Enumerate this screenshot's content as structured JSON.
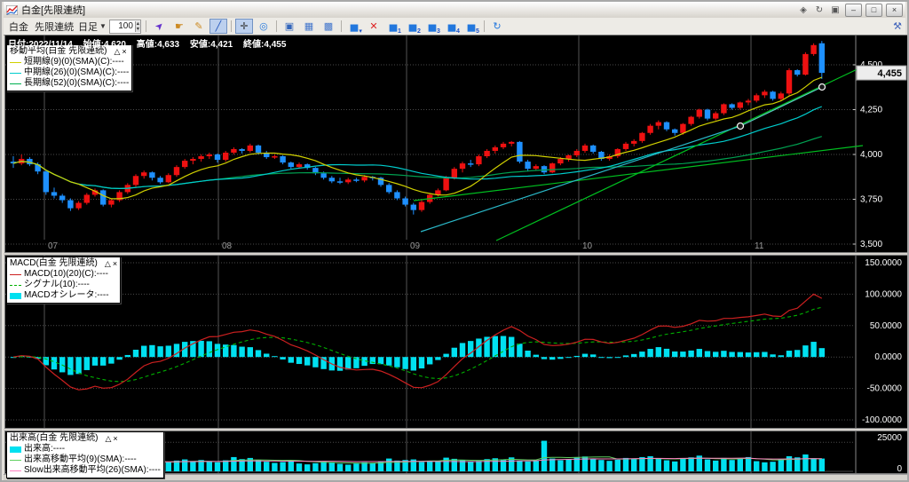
{
  "window": {
    "title": "白金[先限連続]",
    "mini_icons": [
      {
        "name": "pin-icon",
        "glyph": "◈"
      },
      {
        "name": "refresh-window-icon",
        "glyph": "↻"
      },
      {
        "name": "duplicate-window-icon",
        "glyph": "▣"
      }
    ],
    "controls": [
      {
        "name": "minimize-button",
        "glyph": "–"
      },
      {
        "name": "maximize-button",
        "glyph": "□"
      },
      {
        "name": "close-button",
        "glyph": "×"
      }
    ]
  },
  "toolbar": {
    "symbol": "白金",
    "series": "先限連続",
    "period": "日足",
    "period_caret": "▼",
    "bars_count": "100",
    "spin_up": "▴",
    "spin_down": "▾",
    "wrench_glyph": "⚒",
    "buttons": [
      {
        "name": "select-tool",
        "glyph": "➤",
        "color": "#6633cc",
        "rotate": -45
      },
      {
        "name": "hand-tool",
        "glyph": "☛",
        "color": "#cc8a22"
      },
      {
        "name": "pencil-tool",
        "glyph": "✎",
        "color": "#cc8a22"
      },
      {
        "name": "trendline-tool",
        "glyph": "╱",
        "color": "#2255bb",
        "selected": true
      },
      {
        "type": "sep"
      },
      {
        "name": "crosshair-tool",
        "glyph": "✛",
        "color": "#333333",
        "selected": true
      },
      {
        "name": "scroll-to-latest",
        "glyph": "◎",
        "color": "#2277dd"
      },
      {
        "type": "sep"
      },
      {
        "name": "new-chart-window",
        "glyph": "▣",
        "color": "#3366bb"
      },
      {
        "name": "grid-layout-2",
        "glyph": "▦",
        "color": "#4477cc"
      },
      {
        "name": "grid-layout-3",
        "glyph": "▩",
        "color": "#4477cc"
      },
      {
        "type": "sep"
      },
      {
        "name": "add-indicator",
        "glyph": "▅",
        "color": "#2277dd",
        "badge": "▾"
      },
      {
        "name": "delete-indicator",
        "glyph": "✕",
        "color": "#dd2222"
      },
      {
        "name": "chart-preset-1",
        "glyph": "▅",
        "color": "#2277dd",
        "badge": "1"
      },
      {
        "name": "chart-preset-2",
        "glyph": "▅",
        "color": "#2277dd",
        "badge": "2"
      },
      {
        "name": "chart-preset-3",
        "glyph": "▅",
        "color": "#2277dd",
        "badge": "3"
      },
      {
        "name": "chart-preset-4",
        "glyph": "▅",
        "color": "#2277dd",
        "badge": "4"
      },
      {
        "name": "chart-preset-5",
        "glyph": "▅",
        "color": "#2277dd",
        "badge": "5"
      },
      {
        "type": "sep"
      },
      {
        "name": "refresh-chart",
        "glyph": "↻",
        "color": "#2277dd"
      }
    ]
  },
  "info_bar": {
    "date": "日付:2022/11/14",
    "open": "始値:4,620",
    "high": "高値:4,633",
    "low": "安値:4,421",
    "close": "終値:4,455"
  },
  "main_chart": {
    "legend": {
      "title": "移動平均(白金 先限連続)",
      "collapse": "△",
      "close": "×",
      "items": [
        {
          "color": "#d0d000",
          "swatch": "line",
          "label": "短期線(9)(0)(SMA)(C):----"
        },
        {
          "color": "#00cccc",
          "swatch": "line",
          "label": "中期線(26)(0)(SMA)(C):----"
        },
        {
          "color": "#00b050",
          "swatch": "line",
          "label": "長期線(52)(0)(SMA)(C):----"
        }
      ]
    },
    "current_price": "4,455",
    "current_price_value": 4455,
    "y_axis": [
      {
        "value": 4500,
        "label": "4,500"
      },
      {
        "value": 4250,
        "label": "4,250"
      },
      {
        "value": 4000,
        "label": "4,000"
      },
      {
        "value": 3750,
        "label": "3,750"
      },
      {
        "value": 3500,
        "label": "3,500"
      }
    ],
    "months": [
      {
        "x": 44,
        "label": "07"
      },
      {
        "x": 240,
        "label": "08"
      },
      {
        "x": 452,
        "label": "09"
      },
      {
        "x": 646,
        "label": "10"
      },
      {
        "x": 840,
        "label": "11"
      }
    ],
    "sma_periods": {
      "short": 9,
      "mid": 26,
      "long": 52
    },
    "sma_colors": {
      "short": "#d0d000",
      "mid": "#00cccc",
      "long": "#00a050"
    },
    "candle_colors": {
      "up": "#ee1111",
      "down": "#1e90ff"
    },
    "trendlines": [
      {
        "color": "#00c020",
        "points": [
          [
            553,
            231
          ],
          [
            966,
            35
          ]
        ]
      },
      {
        "color": "#00c020",
        "points": [
          [
            460,
            186
          ],
          [
            966,
            124
          ]
        ]
      },
      {
        "color": "#2ab8c8",
        "points": [
          [
            468,
            221
          ],
          [
            828,
            102
          ]
        ]
      },
      {
        "color": "#58c8c0",
        "points": [
          [
            828,
            102
          ],
          [
            920,
            58
          ]
        ],
        "handles": true
      }
    ],
    "candles": [
      [
        3960,
        3990,
        3925,
        3950
      ],
      [
        3950,
        4000,
        3940,
        3975
      ],
      [
        3975,
        3985,
        3935,
        3945
      ],
      [
        3945,
        3955,
        3890,
        3905
      ],
      [
        3905,
        3910,
        3775,
        3790
      ],
      [
        3790,
        3815,
        3755,
        3770
      ],
      [
        3770,
        3780,
        3730,
        3745
      ],
      [
        3745,
        3755,
        3685,
        3700
      ],
      [
        3700,
        3740,
        3690,
        3730
      ],
      [
        3730,
        3785,
        3720,
        3775
      ],
      [
        3775,
        3810,
        3765,
        3800
      ],
      [
        3800,
        3805,
        3710,
        3720
      ],
      [
        3720,
        3755,
        3705,
        3745
      ],
      [
        3745,
        3800,
        3735,
        3790
      ],
      [
        3790,
        3840,
        3780,
        3830
      ],
      [
        3830,
        3890,
        3820,
        3880
      ],
      [
        3880,
        3910,
        3865,
        3900
      ],
      [
        3900,
        3905,
        3855,
        3870
      ],
      [
        3870,
        3880,
        3835,
        3845
      ],
      [
        3845,
        3895,
        3840,
        3885
      ],
      [
        3885,
        3940,
        3875,
        3930
      ],
      [
        3930,
        3975,
        3920,
        3965
      ],
      [
        3965,
        3985,
        3945,
        3975
      ],
      [
        3975,
        4000,
        3960,
        3990
      ],
      [
        3990,
        4010,
        3975,
        4000
      ],
      [
        4000,
        4005,
        3955,
        3970
      ],
      [
        3970,
        4020,
        3960,
        4010
      ],
      [
        4010,
        4040,
        4000,
        4030
      ],
      [
        4030,
        4035,
        4005,
        4020
      ],
      [
        4020,
        4060,
        4010,
        4050
      ],
      [
        4050,
        4055,
        4000,
        4010
      ],
      [
        4010,
        4020,
        3975,
        3985
      ],
      [
        3985,
        4000,
        3975,
        3990
      ],
      [
        3990,
        3995,
        3945,
        3955
      ],
      [
        3955,
        3960,
        3920,
        3930
      ],
      [
        3930,
        3955,
        3920,
        3945
      ],
      [
        3945,
        3950,
        3915,
        3925
      ],
      [
        3925,
        3930,
        3885,
        3895
      ],
      [
        3895,
        3905,
        3860,
        3870
      ],
      [
        3870,
        3880,
        3840,
        3850
      ],
      [
        3850,
        3870,
        3835,
        3845
      ],
      [
        3845,
        3870,
        3835,
        3860
      ],
      [
        3860,
        3870,
        3845,
        3855
      ],
      [
        3855,
        3885,
        3845,
        3875
      ],
      [
        3875,
        3880,
        3855,
        3870
      ],
      [
        3870,
        3875,
        3820,
        3830
      ],
      [
        3830,
        3840,
        3780,
        3790
      ],
      [
        3790,
        3800,
        3745,
        3755
      ],
      [
        3755,
        3765,
        3710,
        3720
      ],
      [
        3720,
        3730,
        3665,
        3690
      ],
      [
        3690,
        3745,
        3680,
        3735
      ],
      [
        3735,
        3785,
        3725,
        3775
      ],
      [
        3775,
        3810,
        3765,
        3800
      ],
      [
        3800,
        3880,
        3795,
        3870
      ],
      [
        3870,
        3930,
        3860,
        3920
      ],
      [
        3920,
        3960,
        3900,
        3950
      ],
      [
        3950,
        3970,
        3930,
        3945
      ],
      [
        3945,
        4000,
        3935,
        3990
      ],
      [
        3990,
        4030,
        3980,
        4020
      ],
      [
        4020,
        4050,
        4005,
        4040
      ],
      [
        4040,
        4070,
        4030,
        4060
      ],
      [
        4060,
        4075,
        4045,
        4070
      ],
      [
        4070,
        4075,
        3950,
        3960
      ],
      [
        3960,
        3970,
        3905,
        3920
      ],
      [
        3920,
        3945,
        3910,
        3935
      ],
      [
        3935,
        3940,
        3890,
        3900
      ],
      [
        3900,
        3955,
        3895,
        3950
      ],
      [
        3950,
        3985,
        3940,
        3975
      ],
      [
        3975,
        4000,
        3960,
        3995
      ],
      [
        3995,
        4030,
        3985,
        4020
      ],
      [
        4020,
        4060,
        4010,
        4050
      ],
      [
        4050,
        4055,
        4005,
        4015
      ],
      [
        4015,
        4020,
        3965,
        3975
      ],
      [
        3975,
        4000,
        3965,
        3990
      ],
      [
        3990,
        4035,
        3980,
        4030
      ],
      [
        4030,
        4070,
        4020,
        4060
      ],
      [
        4060,
        4085,
        4045,
        4075
      ],
      [
        4075,
        4125,
        4065,
        4120
      ],
      [
        4120,
        4170,
        4110,
        4160
      ],
      [
        4160,
        4190,
        4140,
        4180
      ],
      [
        4180,
        4185,
        4130,
        4140
      ],
      [
        4140,
        4145,
        4105,
        4120
      ],
      [
        4120,
        4175,
        4110,
        4170
      ],
      [
        4170,
        4215,
        4160,
        4210
      ],
      [
        4210,
        4255,
        4200,
        4250
      ],
      [
        4250,
        4255,
        4190,
        4200
      ],
      [
        4200,
        4240,
        4190,
        4230
      ],
      [
        4230,
        4285,
        4220,
        4280
      ],
      [
        4280,
        4285,
        4250,
        4260
      ],
      [
        4260,
        4295,
        4250,
        4290
      ],
      [
        4290,
        4310,
        4275,
        4300
      ],
      [
        4300,
        4340,
        4290,
        4330
      ],
      [
        4330,
        4360,
        4315,
        4350
      ],
      [
        4350,
        4355,
        4300,
        4310
      ],
      [
        4310,
        4350,
        4300,
        4340
      ],
      [
        4340,
        4480,
        4330,
        4470
      ],
      [
        4470,
        4475,
        4435,
        4445
      ],
      [
        4445,
        4570,
        4440,
        4560
      ],
      [
        4560,
        4620,
        4550,
        4610
      ],
      [
        4620,
        4633,
        4421,
        4455
      ]
    ]
  },
  "macd": {
    "legend": {
      "title": "MACD(白金 先限連続)",
      "collapse": "△",
      "close": "×",
      "items": [
        {
          "color": "#cc2020",
          "swatch": "line",
          "label": "MACD(10)(20)(C):----"
        },
        {
          "color": "#00b000",
          "swatch": "dashed",
          "label": "シグナル(10):----"
        },
        {
          "color": "#00e0f0",
          "swatch": "block",
          "label": "MACDオシレータ:----"
        }
      ]
    },
    "params": {
      "fast": 10,
      "slow": 20,
      "signal": 10
    },
    "colors": {
      "macd": "#cc2020",
      "signal": "#00b000",
      "osc": "#00e0f0"
    },
    "y_axis": [
      {
        "value": 150,
        "label": "150.0000"
      },
      {
        "value": 100,
        "label": "100.0000"
      },
      {
        "value": 50,
        "label": "50.0000"
      },
      {
        "value": 0,
        "label": "0.0000"
      },
      {
        "value": -50,
        "label": "-50.0000"
      },
      {
        "value": -100,
        "label": "-100.0000"
      }
    ]
  },
  "volume": {
    "legend": {
      "title": "出来高(白金 先限連続)",
      "collapse": "△",
      "close": "×",
      "items": [
        {
          "color": "#00e0f0",
          "swatch": "block",
          "label": "出来高:----"
        },
        {
          "color": "#60d060",
          "swatch": "line",
          "label": "出来高移動平均(9)(SMA):----"
        },
        {
          "color": "#ff80c0",
          "swatch": "line",
          "label": "Slow出来高移動平均(26)(SMA):----"
        }
      ]
    },
    "colors": {
      "bar": "#00e0f0",
      "ma9": "#60d060",
      "ma26": "#ff80c0"
    },
    "y_axis": [
      {
        "value": 25000,
        "label": "25000"
      },
      {
        "value": 0,
        "label": "0"
      }
    ],
    "values": [
      6200,
      5800,
      5400,
      6800,
      9200,
      7400,
      6600,
      7800,
      6400,
      5900,
      6800,
      7600,
      5200,
      5800,
      6400,
      8600,
      7200,
      5600,
      5400,
      6200,
      7400,
      8200,
      6800,
      7800,
      7000,
      6200,
      7600,
      9800,
      8400,
      9200,
      7800,
      6600,
      5800,
      6400,
      7200,
      5400,
      4800,
      5600,
      6800,
      6200,
      5200,
      4600,
      5400,
      6200,
      5800,
      6600,
      8800,
      7400,
      7800,
      8200,
      6400,
      7200,
      6800,
      9400,
      8600,
      7800,
      6600,
      7200,
      8400,
      9000,
      8200,
      9600,
      7400,
      6800,
      7600,
      21000,
      8800,
      7600,
      8200,
      9400,
      10200,
      8600,
      7800,
      7200,
      8000,
      9200,
      8600,
      9800,
      10400,
      9000,
      7600,
      6800,
      8800,
      9600,
      10800,
      8200,
      7400,
      9200,
      7800,
      8600,
      9800,
      7000,
      6200,
      6600,
      8400,
      10400,
      9600,
      11600,
      9000,
      8800
    ]
  }
}
